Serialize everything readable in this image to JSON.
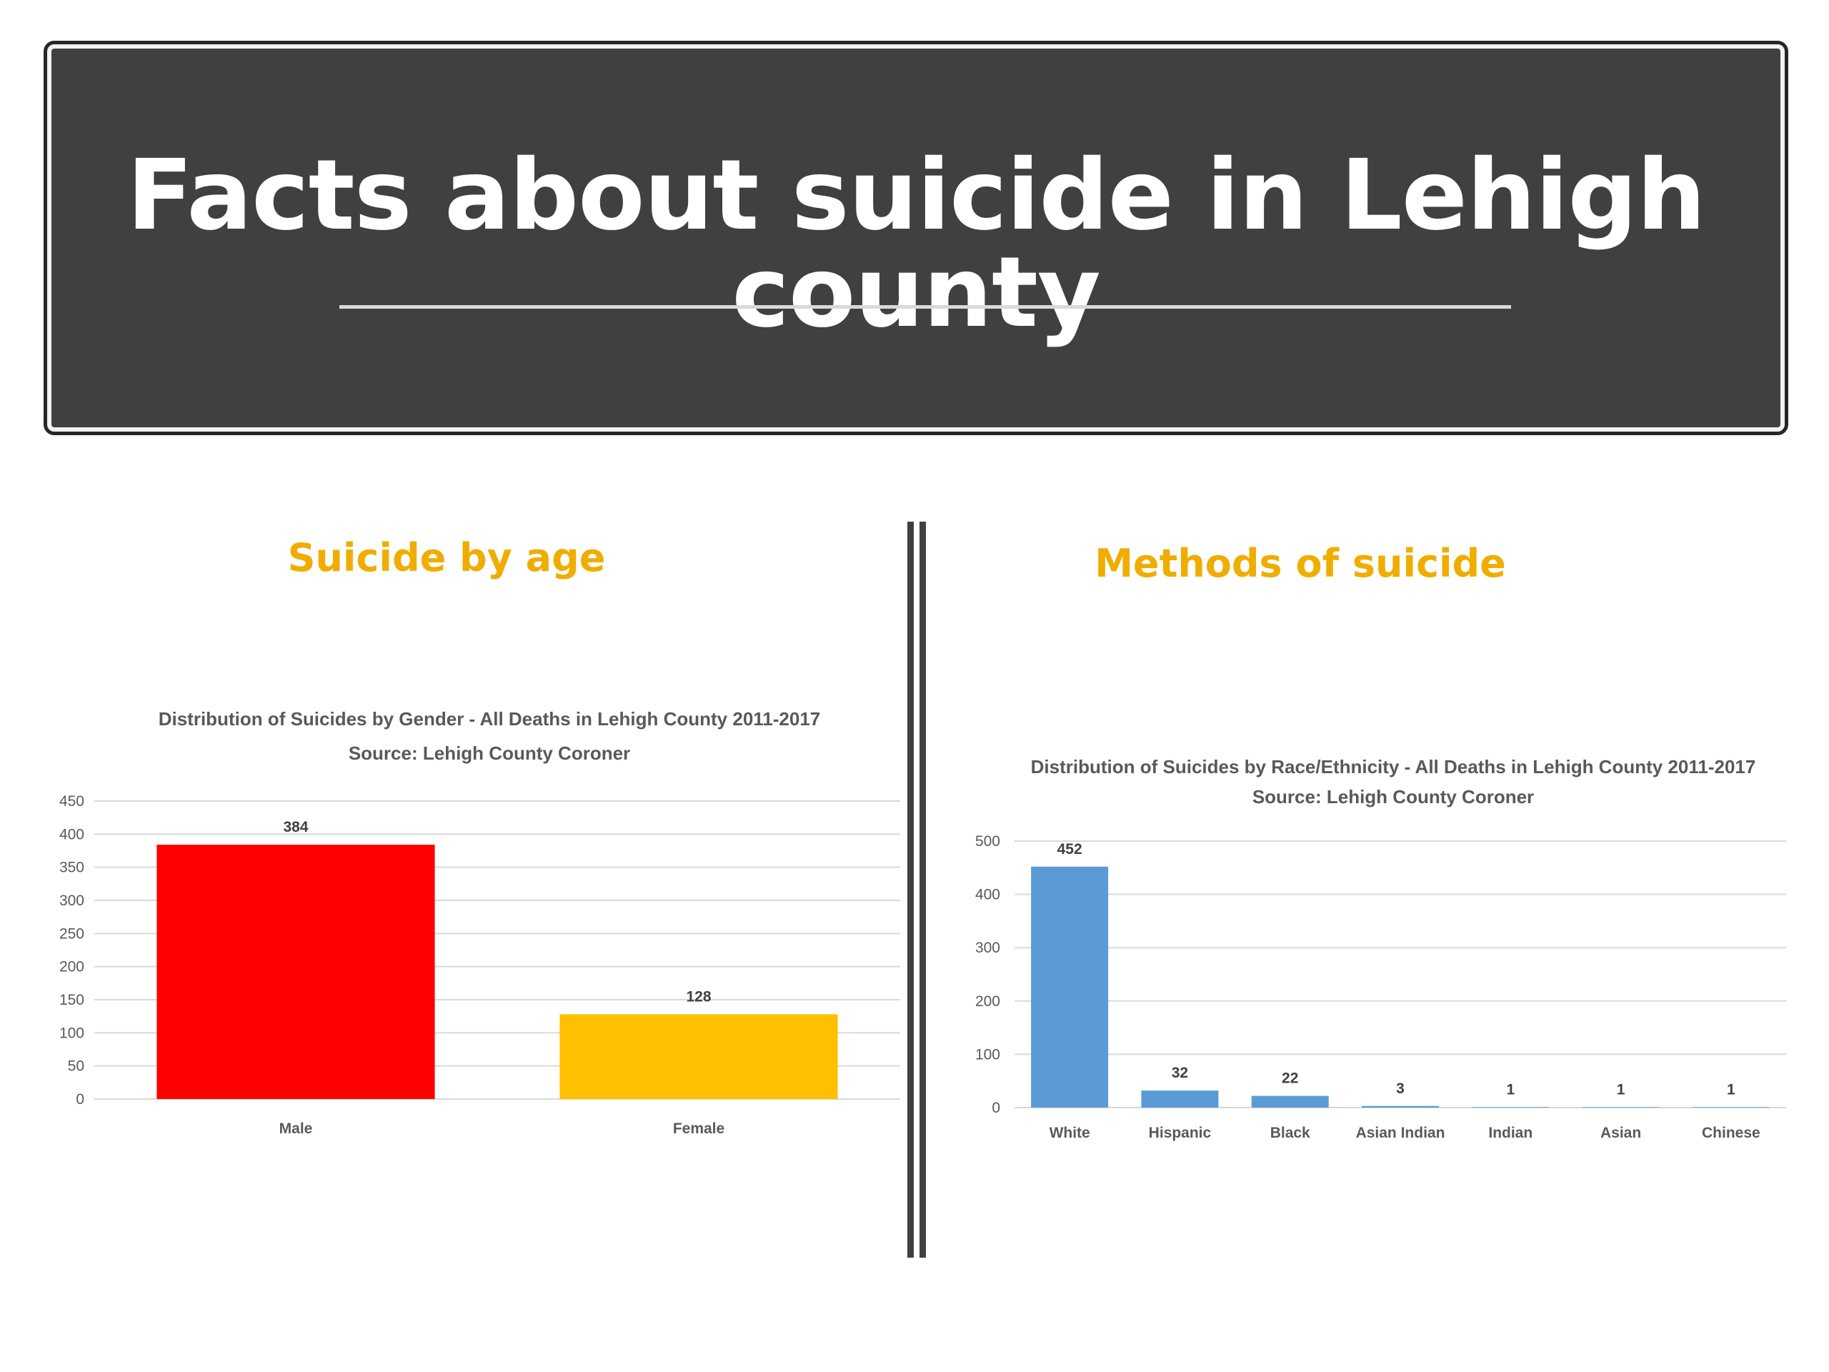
{
  "slide": {
    "title": "Facts about suicide in Lehigh county",
    "left_heading": "Suicide by age",
    "right_heading": "Methods of suicide",
    "heading_color": "#f0ad00"
  },
  "chart_data": [
    {
      "type": "bar",
      "title": "Distribution of Suicides by Gender - All Deaths in Lehigh County 2011-2017",
      "subtitle": "Source: Lehigh County Coroner",
      "categories": [
        "Male",
        "Female"
      ],
      "values": [
        384,
        128
      ],
      "bar_colors": [
        "#ff0000",
        "#ffc000"
      ],
      "ylim": [
        0,
        450
      ],
      "yticks": [
        0,
        50,
        100,
        150,
        200,
        250,
        300,
        350,
        400,
        450
      ],
      "data_labels": true,
      "grid": true
    },
    {
      "type": "bar",
      "title": "Distribution of Suicides by Race/Ethnicity - All Deaths in Lehigh County 2011-2017",
      "subtitle": "Source: Lehigh County Coroner",
      "categories": [
        "White",
        "Hispanic",
        "Black",
        "Asian Indian",
        "Indian",
        "Asian",
        "Chinese"
      ],
      "values": [
        452,
        32,
        22,
        3,
        1,
        1,
        1
      ],
      "bar_colors": [
        "#5b9bd5"
      ],
      "ylim": [
        0,
        500
      ],
      "yticks": [
        0,
        100,
        200,
        300,
        400,
        500
      ],
      "data_labels": true,
      "grid": true
    }
  ]
}
